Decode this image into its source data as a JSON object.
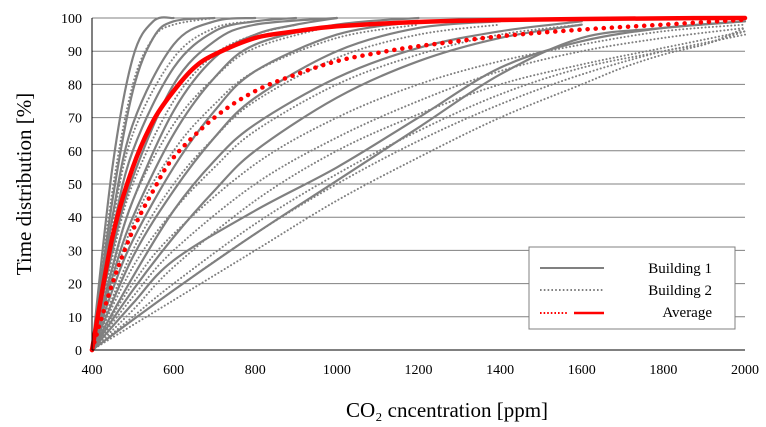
{
  "chart_data": {
    "type": "line",
    "title": "",
    "xlabel": "CO₂ cncentration [ppm]",
    "ylabel": "Time distribution [%]",
    "xlim": [
      400,
      2000
    ],
    "ylim": [
      0,
      100
    ],
    "xticks": [
      "400",
      "600",
      "800",
      "1000",
      "1200",
      "1400",
      "1600",
      "1800",
      "2000"
    ],
    "yticks": [
      "0",
      "10",
      "20",
      "30",
      "40",
      "50",
      "60",
      "70",
      "80",
      "90",
      "100"
    ],
    "grid": "horizontal",
    "legend_position": "bottom-right",
    "colors": {
      "building1": "#808080",
      "building2": "#808080",
      "average": "#ff0000",
      "grid": "#808080"
    },
    "legend": [
      {
        "label": "Building 1",
        "style": "solid",
        "color": "#808080"
      },
      {
        "label": "Building 2",
        "style": "dotted",
        "color": "#808080"
      },
      {
        "label": "Average",
        "style": "dotted+solid",
        "color": "#ff0000"
      }
    ],
    "series": [
      {
        "group": "building1",
        "style": "solid",
        "x": [
          400,
          450,
          500,
          550,
          600
        ],
        "y": [
          0,
          55,
          88,
          99,
          100
        ]
      },
      {
        "group": "building1",
        "style": "solid",
        "x": [
          400,
          450,
          500,
          550,
          600,
          700
        ],
        "y": [
          0,
          45,
          78,
          94,
          99,
          100
        ]
      },
      {
        "group": "building1",
        "style": "solid",
        "x": [
          400,
          450,
          500,
          600,
          700,
          800
        ],
        "y": [
          0,
          40,
          68,
          92,
          99,
          100
        ]
      },
      {
        "group": "building1",
        "style": "solid",
        "x": [
          400,
          450,
          500,
          600,
          700,
          800,
          900
        ],
        "y": [
          0,
          35,
          60,
          85,
          96,
          99,
          100
        ]
      },
      {
        "group": "building1",
        "style": "solid",
        "x": [
          400,
          450,
          500,
          600,
          700,
          800,
          1000
        ],
        "y": [
          0,
          30,
          52,
          80,
          93,
          98,
          100
        ]
      },
      {
        "group": "building1",
        "style": "solid",
        "x": [
          400,
          450,
          500,
          600,
          700,
          800,
          900,
          1000
        ],
        "y": [
          0,
          25,
          45,
          72,
          88,
          95,
          98,
          100
        ]
      },
      {
        "group": "building1",
        "style": "solid",
        "x": [
          400,
          450,
          500,
          600,
          700,
          800,
          1000,
          1200
        ],
        "y": [
          0,
          22,
          40,
          65,
          82,
          92,
          98,
          100
        ]
      },
      {
        "group": "building1",
        "style": "solid",
        "x": [
          400,
          450,
          500,
          600,
          700,
          800,
          1000,
          1200
        ],
        "y": [
          0,
          18,
          33,
          55,
          72,
          84,
          95,
          99
        ]
      },
      {
        "group": "building1",
        "style": "solid",
        "x": [
          400,
          500,
          600,
          700,
          800,
          1000,
          1200,
          1400
        ],
        "y": [
          0,
          28,
          48,
          64,
          76,
          90,
          97,
          99
        ]
      },
      {
        "group": "building1",
        "style": "solid",
        "x": [
          400,
          500,
          600,
          700,
          800,
          1000,
          1200,
          1400,
          1600
        ],
        "y": [
          0,
          22,
          42,
          57,
          68,
          82,
          91,
          96,
          99
        ]
      },
      {
        "group": "building1",
        "style": "solid",
        "x": [
          400,
          500,
          600,
          700,
          800,
          1000,
          1200,
          1400,
          1600
        ],
        "y": [
          0,
          18,
          34,
          48,
          60,
          76,
          87,
          94,
          98
        ]
      },
      {
        "group": "building1",
        "style": "solid",
        "x": [
          400,
          500,
          600,
          800,
          1000,
          1200,
          1400,
          1600,
          1800,
          2000
        ],
        "y": [
          0,
          14,
          27,
          42,
          55,
          70,
          85,
          93,
          97,
          99
        ]
      },
      {
        "group": "building1",
        "style": "solid",
        "x": [
          400,
          600,
          800,
          1000,
          1200,
          1400,
          1600,
          1800,
          2000
        ],
        "y": [
          0,
          18,
          35,
          51,
          67,
          83,
          94,
          97,
          99
        ]
      },
      {
        "group": "building2",
        "style": "dotted",
        "x": [
          400,
          450,
          500,
          550,
          600,
          700
        ],
        "y": [
          0,
          48,
          80,
          94,
          98,
          100
        ]
      },
      {
        "group": "building2",
        "style": "dotted",
        "x": [
          400,
          450,
          500,
          600,
          700,
          800
        ],
        "y": [
          0,
          38,
          65,
          88,
          97,
          99
        ]
      },
      {
        "group": "building2",
        "style": "dotted",
        "x": [
          400,
          450,
          500,
          600,
          700,
          800,
          900
        ],
        "y": [
          0,
          28,
          50,
          75,
          89,
          95,
          98
        ]
      },
      {
        "group": "building2",
        "style": "dotted",
        "x": [
          400,
          450,
          500,
          600,
          700,
          800,
          1000
        ],
        "y": [
          0,
          24,
          45,
          68,
          82,
          91,
          98
        ]
      },
      {
        "group": "building2",
        "style": "dotted",
        "x": [
          400,
          500,
          600,
          700,
          800,
          1000,
          1200
        ],
        "y": [
          0,
          38,
          60,
          74,
          84,
          94,
          98
        ]
      },
      {
        "group": "building2",
        "style": "dotted",
        "x": [
          400,
          500,
          600,
          700,
          800,
          1000,
          1200,
          1400
        ],
        "y": [
          0,
          30,
          50,
          64,
          75,
          88,
          95,
          98
        ]
      },
      {
        "group": "building2",
        "style": "dotted",
        "x": [
          400,
          500,
          600,
          700,
          800,
          1000,
          1200,
          1400,
          1600
        ],
        "y": [
          0,
          25,
          42,
          55,
          66,
          80,
          89,
          95,
          98
        ]
      },
      {
        "group": "building2",
        "style": "dotted",
        "x": [
          400,
          500,
          600,
          800,
          1000,
          1200,
          1400,
          1600,
          1800,
          2000
        ],
        "y": [
          0,
          20,
          35,
          56,
          70,
          80,
          87,
          92,
          96,
          98
        ]
      },
      {
        "group": "building2",
        "style": "dotted",
        "x": [
          400,
          500,
          600,
          800,
          1000,
          1200,
          1400,
          1600,
          1800,
          2000
        ],
        "y": [
          0,
          16,
          30,
          50,
          64,
          75,
          84,
          90,
          94,
          97
        ]
      },
      {
        "group": "building2",
        "style": "dotted",
        "x": [
          400,
          500,
          600,
          800,
          1000,
          1200,
          1400,
          1600,
          1800,
          2000
        ],
        "y": [
          0,
          12,
          25,
          45,
          60,
          71,
          80,
          86,
          91,
          96
        ]
      },
      {
        "group": "building2",
        "style": "dotted",
        "x": [
          400,
          500,
          600,
          800,
          1000,
          1200,
          1400,
          1600,
          1800,
          2000
        ],
        "y": [
          0,
          10,
          20,
          38,
          53,
          66,
          77,
          85,
          90,
          95
        ]
      },
      {
        "group": "building2",
        "style": "dotted",
        "x": [
          400,
          600,
          800,
          1000,
          1200,
          1400,
          1600,
          1800,
          1900,
          2000
        ],
        "y": [
          0,
          18,
          35,
          50,
          63,
          74,
          83,
          90,
          92,
          97
        ]
      },
      {
        "group": "building2",
        "style": "dotted",
        "x": [
          400,
          600,
          800,
          1000,
          1200,
          1400,
          1600,
          1700,
          1800,
          1900,
          2000
        ],
        "y": [
          0,
          15,
          30,
          45,
          58,
          70,
          80,
          85,
          89,
          92,
          96
        ]
      },
      {
        "group": "average",
        "style": "solid",
        "name": "Average",
        "x": [
          400,
          450,
          500,
          550,
          600,
          650,
          700,
          800,
          900,
          1000,
          1200,
          1400,
          1600,
          1800,
          2000
        ],
        "y": [
          0,
          34,
          55,
          69,
          78,
          85,
          89,
          94,
          96,
          97.5,
          98.8,
          99.4,
          99.7,
          99.9,
          100
        ]
      },
      {
        "group": "average",
        "style": "dotted",
        "name": "Average",
        "x": [
          400,
          450,
          500,
          550,
          600,
          700,
          800,
          900,
          1000,
          1100,
          1200,
          1400,
          1600,
          1800,
          2000
        ],
        "y": [
          0,
          20,
          36,
          48,
          58,
          70,
          78,
          83,
          87,
          89.5,
          91.5,
          94.5,
          96.5,
          98,
          99.5
        ]
      }
    ]
  }
}
